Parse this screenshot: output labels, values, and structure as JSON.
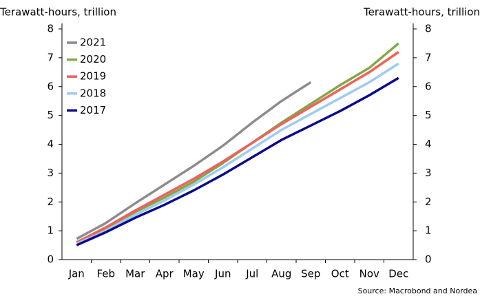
{
  "chart_data": {
    "type": "line",
    "ylabel": "Terawatt-hours, trillion",
    "y2label": "Terawatt-hours, trillion",
    "source": "Source: Macrobond and Nordea",
    "categories": [
      "Jan",
      "Feb",
      "Mar",
      "Apr",
      "May",
      "Jun",
      "Jul",
      "Aug",
      "Sep",
      "Oct",
      "Nov",
      "Dec"
    ],
    "series": [
      {
        "name": "2021",
        "color": "#8c8c8c",
        "values": [
          0.72,
          1.27,
          1.95,
          2.6,
          3.25,
          3.95,
          4.75,
          5.5,
          6.15,
          null,
          null,
          null
        ]
      },
      {
        "name": "2020",
        "color": "#82a846",
        "values": [
          0.6,
          1.1,
          1.65,
          2.15,
          2.7,
          3.35,
          4.05,
          4.75,
          5.4,
          6.05,
          6.65,
          7.5
        ]
      },
      {
        "name": "2019",
        "color": "#f0605a",
        "values": [
          0.6,
          1.12,
          1.7,
          2.25,
          2.8,
          3.4,
          4.05,
          4.7,
          5.3,
          5.9,
          6.5,
          7.2
        ]
      },
      {
        "name": "2018",
        "color": "#9ccbf5",
        "values": [
          0.55,
          1.0,
          1.55,
          2.05,
          2.6,
          3.2,
          3.85,
          4.5,
          5.05,
          5.6,
          6.15,
          6.8
        ]
      },
      {
        "name": "2017",
        "color": "#0a0a8c",
        "values": [
          0.5,
          0.95,
          1.45,
          1.9,
          2.4,
          2.95,
          3.55,
          4.15,
          4.65,
          5.15,
          5.7,
          6.3
        ]
      }
    ],
    "ylim": [
      0,
      8
    ],
    "yticks": [
      0,
      1,
      2,
      3,
      4,
      5,
      6,
      7,
      8
    ],
    "y2lim": [
      0,
      8
    ],
    "y2ticks": [
      0,
      1,
      2,
      3,
      4,
      5,
      6,
      7,
      8
    ],
    "legend": "upper left",
    "grid": false
  }
}
